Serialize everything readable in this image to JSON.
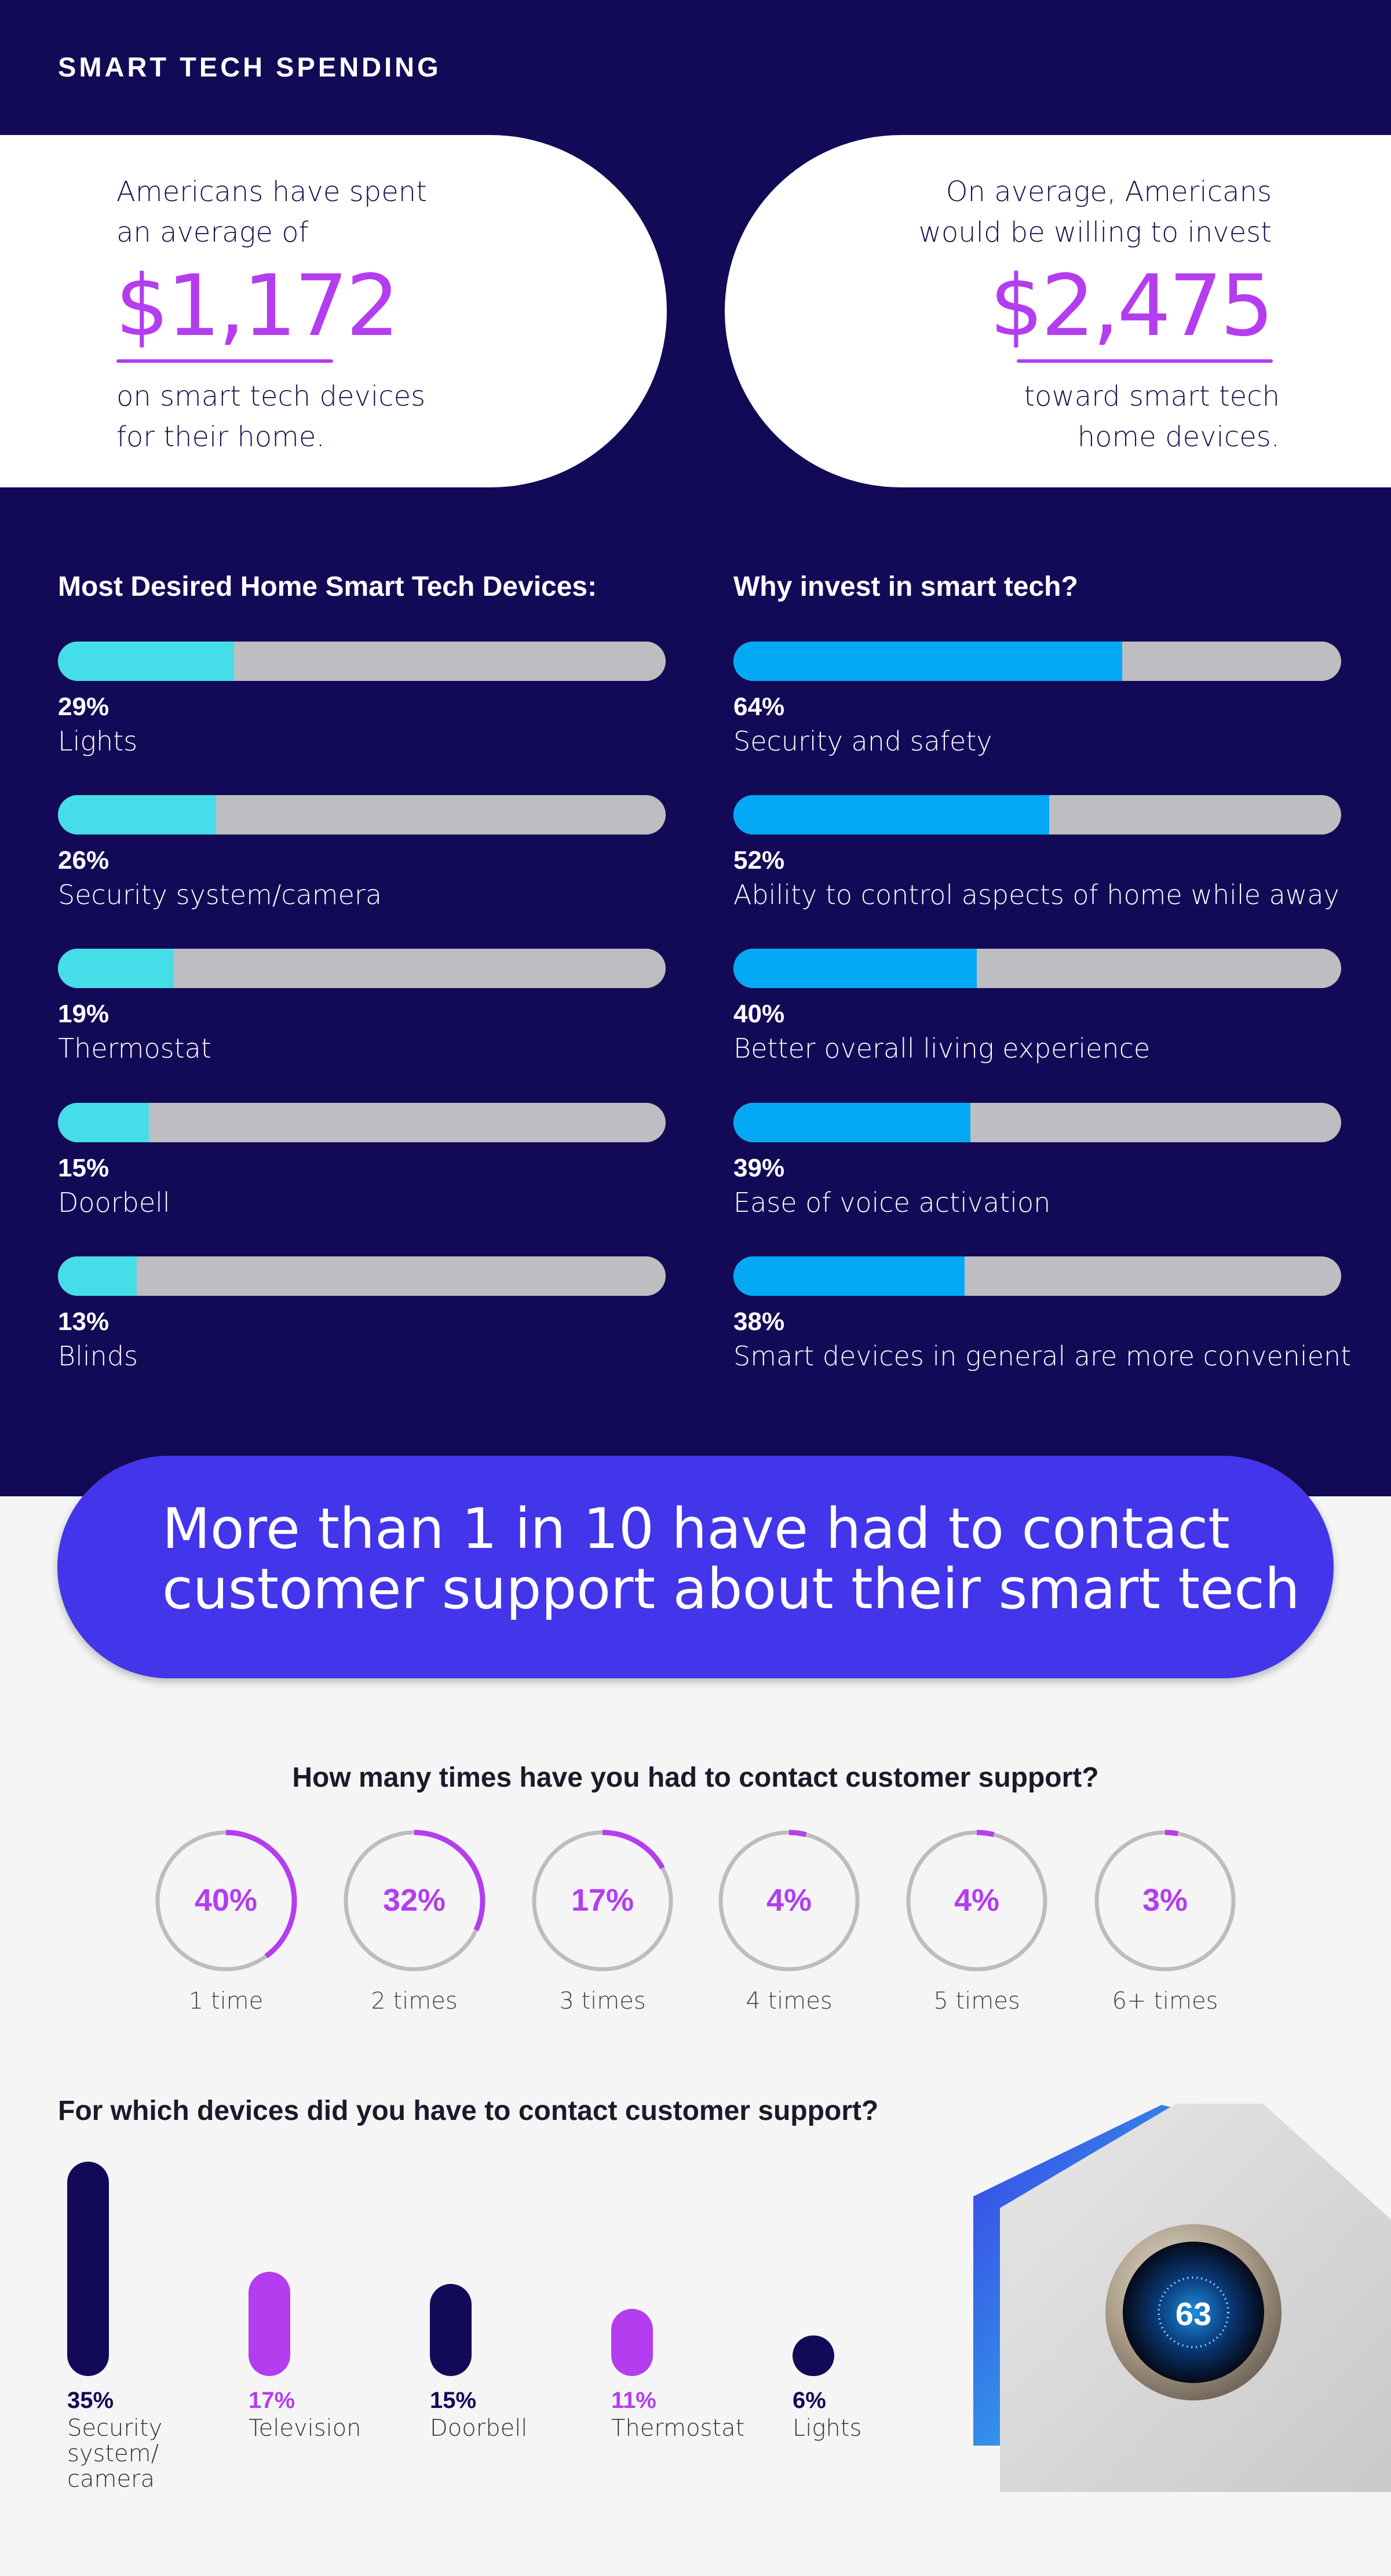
{
  "header": {
    "title": "SMART TECH SPENDING"
  },
  "stat_left": {
    "intro": [
      "Americans have spent",
      "an average of"
    ],
    "value": "$1,172",
    "outro": [
      "on smart tech devices",
      "for their home."
    ]
  },
  "stat_right": {
    "intro": [
      "On average, Americans",
      "would be willing to invest"
    ],
    "value": "$2,475",
    "outro": [
      "toward smart tech",
      "home devices."
    ]
  },
  "colors": {
    "navy": "#130a57",
    "cyan": "#45dde8",
    "blue": "#03a9f4",
    "purple": "#b43df0",
    "indigo": "#4235ea",
    "track": "#bdbdc2"
  },
  "chart_data": [
    {
      "type": "bar",
      "orientation": "horizontal",
      "title": "Most Desired Home Smart Tech Devices:",
      "categories": [
        "Lights",
        "Security system/camera",
        "Thermostat",
        "Doorbell",
        "Blinds"
      ],
      "values": [
        29,
        26,
        19,
        15,
        13
      ],
      "labels": [
        "29%",
        "26%",
        "19%",
        "15%",
        "13%"
      ],
      "unit": "%",
      "range": [
        0,
        100
      ]
    },
    {
      "type": "bar",
      "orientation": "horizontal",
      "title": "Why invest in smart tech?",
      "categories": [
        "Security and safety",
        "Ability to control aspects of home while away",
        "Better overall living experience",
        "Ease of voice activation",
        "Smart devices in general are more convenient"
      ],
      "values": [
        64,
        52,
        40,
        39,
        38
      ],
      "labels": [
        "64%",
        "52%",
        "40%",
        "39%",
        "38%"
      ],
      "unit": "%",
      "range": [
        0,
        100
      ]
    },
    {
      "type": "pie",
      "style": "donut",
      "title": "How many times have you had to contact customer support?",
      "categories": [
        "1 time",
        "2 times",
        "3 times",
        "4 times",
        "5 times",
        "6+ times"
      ],
      "values": [
        40,
        32,
        17,
        4,
        4,
        3
      ],
      "labels": [
        "40%",
        "32%",
        "17%",
        "4%",
        "4%",
        "3%"
      ],
      "unit": "%"
    },
    {
      "type": "bar",
      "orientation": "vertical",
      "title": "For which devices did you have to contact customer support?",
      "categories": [
        "Security system/ camera",
        "Television",
        "Doorbell",
        "Thermostat",
        "Lights"
      ],
      "category_lines": [
        [
          "Security",
          "system/",
          "camera"
        ],
        [
          "Television"
        ],
        [
          "Doorbell"
        ],
        [
          "Thermostat"
        ],
        [
          "Lights"
        ]
      ],
      "values": [
        35,
        17,
        15,
        11,
        6
      ],
      "labels": [
        "35%",
        "17%",
        "15%",
        "11%",
        "6%"
      ],
      "bar_colors": [
        "#130a57",
        "#b43df0",
        "#130a57",
        "#b43df0",
        "#130a57"
      ],
      "unit": "%",
      "range": [
        0,
        35
      ]
    }
  ],
  "banner": {
    "lines": [
      "More than 1 in 10 have had to contact",
      "customer support about their smart tech"
    ]
  },
  "photo": {
    "thermostat_reading": "63"
  }
}
